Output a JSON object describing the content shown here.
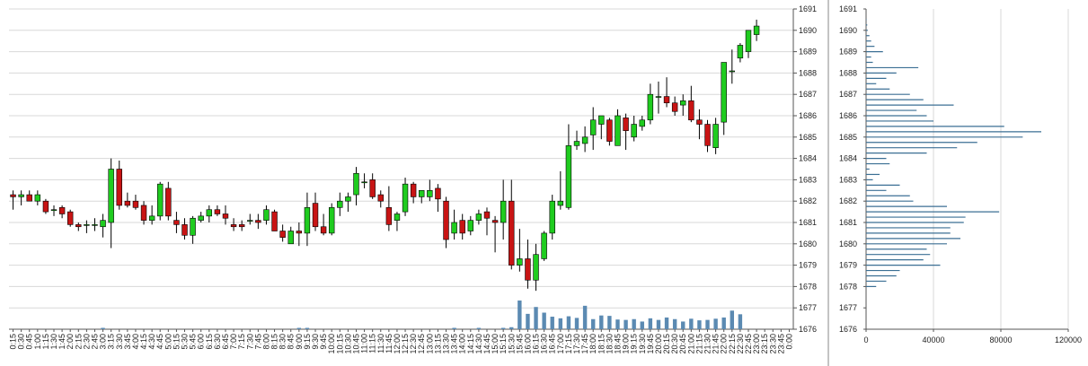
{
  "chart_data": [
    {
      "type": "candlestick",
      "title": "",
      "xlabel": "",
      "ylabel": "",
      "ylim": [
        1676,
        1691
      ],
      "y_ticks": [
        "1691",
        "1690",
        "1689",
        "1688",
        "1687",
        "1686",
        "1685",
        "1684",
        "1683",
        "1682",
        "1681",
        "1680",
        "1679",
        "1678",
        "1677",
        "1676"
      ],
      "x_ticks": [
        "0:15",
        "0:30",
        "0:45",
        "1:00",
        "1:15",
        "1:30",
        "1:45",
        "2:00",
        "2:15",
        "2:30",
        "2:45",
        "3:00",
        "3:15",
        "3:30",
        "3:45",
        "4:00",
        "4:15",
        "4:30",
        "4:45",
        "5:00",
        "5:15",
        "5:30",
        "5:45",
        "6:00",
        "6:15",
        "6:30",
        "6:45",
        "7:00",
        "7:15",
        "7:30",
        "7:45",
        "8:00",
        "8:15",
        "8:30",
        "8:45",
        "9:00",
        "9:15",
        "9:30",
        "9:45",
        "10:00",
        "10:15",
        "10:30",
        "10:45",
        "11:00",
        "11:15",
        "11:30",
        "11:45",
        "12:00",
        "12:15",
        "12:30",
        "12:45",
        "13:00",
        "13:15",
        "13:30",
        "13:45",
        "14:00",
        "14:15",
        "14:30",
        "14:45",
        "15:00",
        "15:15",
        "15:30",
        "15:45",
        "16:00",
        "16:15",
        "16:30",
        "16:45",
        "17:00",
        "17:15",
        "17:30",
        "17:45",
        "18:00",
        "18:15",
        "18:30",
        "18:45",
        "19:00",
        "19:15",
        "19:30",
        "19:45",
        "20:00",
        "20:15",
        "20:30",
        "20:45",
        "21:00",
        "21:15",
        "21:30",
        "21:45",
        "22:00",
        "22:15",
        "22:30",
        "22:45",
        "23:00",
        "23:15",
        "23:30",
        "23:45",
        "0:00"
      ],
      "candles": [
        [
          1682.3,
          1682.5,
          1681.6,
          1682.2
        ],
        [
          1682.2,
          1682.5,
          1681.8,
          1682.3
        ],
        [
          1682.3,
          1682.5,
          1682.0,
          1682.0
        ],
        [
          1682.0,
          1682.5,
          1681.8,
          1682.3
        ],
        [
          1682.0,
          1682.1,
          1681.4,
          1681.5
        ],
        [
          1681.6,
          1681.8,
          1681.3,
          1681.6
        ],
        [
          1681.7,
          1681.8,
          1681.2,
          1681.4
        ],
        [
          1681.5,
          1681.6,
          1680.8,
          1680.9
        ],
        [
          1680.9,
          1681.0,
          1680.6,
          1680.8
        ],
        [
          1680.9,
          1681.1,
          1680.5,
          1680.9
        ],
        [
          1680.9,
          1681.2,
          1680.6,
          1680.9
        ],
        [
          1680.8,
          1681.4,
          1680.3,
          1681.1
        ],
        [
          1681.0,
          1684.0,
          1679.8,
          1683.5
        ],
        [
          1683.5,
          1683.9,
          1681.6,
          1681.8
        ],
        [
          1682.0,
          1682.4,
          1681.7,
          1681.8
        ],
        [
          1682.0,
          1682.3,
          1681.6,
          1681.7
        ],
        [
          1681.8,
          1682.0,
          1680.9,
          1681.1
        ],
        [
          1681.1,
          1681.8,
          1680.9,
          1681.3
        ],
        [
          1681.3,
          1682.9,
          1681.1,
          1682.8
        ],
        [
          1682.6,
          1682.9,
          1681.1,
          1681.3
        ],
        [
          1681.1,
          1681.5,
          1680.5,
          1680.9
        ],
        [
          1680.9,
          1681.2,
          1680.2,
          1680.4
        ],
        [
          1680.4,
          1681.3,
          1680.0,
          1681.2
        ],
        [
          1681.1,
          1681.5,
          1681.0,
          1681.3
        ],
        [
          1681.3,
          1681.8,
          1681.0,
          1681.6
        ],
        [
          1681.6,
          1681.8,
          1681.3,
          1681.4
        ],
        [
          1681.4,
          1681.8,
          1680.9,
          1681.2
        ],
        [
          1680.9,
          1681.2,
          1680.6,
          1680.8
        ],
        [
          1680.9,
          1681.1,
          1680.6,
          1680.8
        ],
        [
          1681.1,
          1681.4,
          1680.9,
          1681.1
        ],
        [
          1681.1,
          1681.4,
          1680.7,
          1681.0
        ],
        [
          1681.1,
          1681.8,
          1680.9,
          1681.6
        ],
        [
          1681.5,
          1681.6,
          1680.6,
          1680.6
        ],
        [
          1680.6,
          1680.9,
          1680.1,
          1680.3
        ],
        [
          1680.0,
          1680.8,
          1680.0,
          1680.6
        ],
        [
          1680.6,
          1681.0,
          1679.9,
          1680.5
        ],
        [
          1680.5,
          1682.4,
          1679.9,
          1681.7
        ],
        [
          1681.9,
          1682.4,
          1680.6,
          1680.8
        ],
        [
          1680.8,
          1681.4,
          1680.4,
          1680.5
        ],
        [
          1680.5,
          1681.9,
          1680.4,
          1681.7
        ],
        [
          1681.7,
          1682.4,
          1681.3,
          1682.0
        ],
        [
          1682.0,
          1682.4,
          1681.5,
          1682.2
        ],
        [
          1682.3,
          1683.6,
          1681.8,
          1683.3
        ],
        [
          1682.9,
          1683.3,
          1682.6,
          1682.9
        ],
        [
          1683.0,
          1683.3,
          1682.1,
          1682.2
        ],
        [
          1682.3,
          1682.5,
          1681.7,
          1682.0
        ],
        [
          1681.7,
          1682.7,
          1680.6,
          1680.9
        ],
        [
          1681.1,
          1681.5,
          1680.6,
          1681.4
        ],
        [
          1681.5,
          1683.1,
          1681.3,
          1682.8
        ],
        [
          1682.8,
          1682.9,
          1681.9,
          1682.2
        ],
        [
          1682.2,
          1682.5,
          1681.9,
          1682.5
        ],
        [
          1682.2,
          1683.0,
          1682.0,
          1682.5
        ],
        [
          1682.6,
          1682.8,
          1681.5,
          1682.1
        ],
        [
          1682.0,
          1682.2,
          1679.8,
          1680.2
        ],
        [
          1680.5,
          1681.6,
          1680.2,
          1681.0
        ],
        [
          1681.1,
          1681.4,
          1680.2,
          1680.5
        ],
        [
          1680.6,
          1681.3,
          1680.4,
          1681.1
        ],
        [
          1681.1,
          1681.6,
          1680.9,
          1681.4
        ],
        [
          1681.5,
          1681.7,
          1680.4,
          1681.2
        ],
        [
          1681.1,
          1681.3,
          1679.6,
          1681.0
        ],
        [
          1681.0,
          1683.0,
          1680.2,
          1682.0
        ],
        [
          1682.0,
          1683.0,
          1678.8,
          1679.0
        ],
        [
          1679.0,
          1680.7,
          1678.7,
          1679.3
        ],
        [
          1679.3,
          1680.2,
          1677.9,
          1678.3
        ],
        [
          1678.3,
          1680.0,
          1677.8,
          1679.5
        ],
        [
          1679.3,
          1680.6,
          1679.2,
          1680.5
        ],
        [
          1680.5,
          1682.3,
          1680.2,
          1682.0
        ],
        [
          1681.8,
          1683.4,
          1681.6,
          1682.0
        ],
        [
          1681.7,
          1685.6,
          1681.6,
          1684.6
        ],
        [
          1684.6,
          1685.3,
          1684.4,
          1684.8
        ],
        [
          1684.7,
          1685.5,
          1684.3,
          1685.0
        ],
        [
          1685.1,
          1686.4,
          1684.4,
          1685.8
        ],
        [
          1685.6,
          1686.0,
          1684.9,
          1686.0
        ],
        [
          1685.8,
          1685.9,
          1684.6,
          1684.8
        ],
        [
          1684.6,
          1686.3,
          1684.6,
          1686.0
        ],
        [
          1685.9,
          1686.1,
          1684.4,
          1685.3
        ],
        [
          1685.0,
          1686.0,
          1684.8,
          1685.6
        ],
        [
          1685.5,
          1686.0,
          1685.3,
          1685.8
        ],
        [
          1685.8,
          1687.5,
          1685.6,
          1687.0
        ],
        [
          1686.9,
          1687.6,
          1686.1,
          1686.9
        ],
        [
          1686.9,
          1687.8,
          1686.4,
          1686.6
        ],
        [
          1686.6,
          1686.9,
          1686.0,
          1686.2
        ],
        [
          1686.5,
          1687.0,
          1686.0,
          1686.7
        ],
        [
          1686.7,
          1687.4,
          1685.7,
          1685.8
        ],
        [
          1685.8,
          1686.3,
          1684.9,
          1685.6
        ],
        [
          1685.6,
          1685.8,
          1684.3,
          1684.6
        ],
        [
          1684.5,
          1685.9,
          1684.2,
          1685.6
        ],
        [
          1685.7,
          1688.5,
          1685.1,
          1688.5
        ],
        [
          1688.1,
          1689.1,
          1687.5,
          1688.1
        ],
        [
          1688.7,
          1689.4,
          1688.5,
          1689.3
        ],
        [
          1689.0,
          1690.0,
          1688.7,
          1690.0
        ],
        [
          1689.8,
          1690.5,
          1689.5,
          1690.2
        ],
        null,
        null,
        null,
        null
      ],
      "volume_max": 7100,
      "volume": [
        0,
        0,
        0,
        0,
        0,
        0,
        0,
        0,
        0,
        0,
        0,
        180,
        0,
        0,
        0,
        0,
        0,
        0,
        0,
        0,
        0,
        0,
        0,
        0,
        0,
        0,
        0,
        0,
        0,
        0,
        0,
        0,
        0,
        0,
        0,
        90,
        140,
        0,
        0,
        0,
        0,
        0,
        0,
        0,
        0,
        0,
        0,
        0,
        0,
        0,
        0,
        0,
        0,
        0,
        90,
        0,
        0,
        60,
        0,
        0,
        90,
        500,
        7100,
        3800,
        5500,
        4100,
        3100,
        2700,
        3200,
        2800,
        5800,
        2500,
        3400,
        3300,
        2400,
        2300,
        2500,
        1900,
        2700,
        2300,
        2900,
        2500,
        1900,
        2600,
        2200,
        2300,
        2600,
        2900,
        4600,
        3700,
        0,
        0,
        0,
        0,
        0,
        0
      ],
      "up_color": "#1fcc1f",
      "down_color": "#c81414",
      "volume_color": "#5b8ab2",
      "grid": true
    },
    {
      "type": "horizontal-bar",
      "title": "",
      "xlabel": "",
      "ylabel": "",
      "xlim": [
        0,
        120000
      ],
      "ylim": [
        1676,
        1691
      ],
      "x_ticks": [
        "0",
        "40000",
        "80000",
        "120000"
      ],
      "y_ticks": [
        "1691",
        "1690",
        "1689",
        "1688",
        "1687",
        "1686",
        "1685",
        "1684",
        "1683",
        "1682",
        "1681",
        "1680",
        "1679",
        "1678",
        "1677",
        "1676"
      ],
      "bar_color": "#3b6f94",
      "grid": true,
      "price_levels": [
        1690.5,
        1690.25,
        1690.0,
        1689.75,
        1689.5,
        1689.25,
        1689.0,
        1688.75,
        1688.5,
        1688.25,
        1688.0,
        1687.75,
        1687.5,
        1687.25,
        1687.0,
        1686.75,
        1686.5,
        1686.25,
        1686.0,
        1685.75,
        1685.5,
        1685.25,
        1685.0,
        1684.75,
        1684.5,
        1684.25,
        1684.0,
        1683.75,
        1683.5,
        1683.25,
        1683.0,
        1682.75,
        1682.5,
        1682.25,
        1682.0,
        1681.75,
        1681.5,
        1681.25,
        1681.0,
        1680.75,
        1680.5,
        1680.25,
        1680.0,
        1679.75,
        1679.5,
        1679.25,
        1679.0,
        1678.75,
        1678.5,
        1678.25,
        1678.0
      ],
      "volumes": [
        300,
        700,
        1000,
        2000,
        3000,
        5000,
        10000,
        3000,
        4000,
        31000,
        18000,
        12000,
        6000,
        14000,
        26000,
        34000,
        52000,
        30000,
        36000,
        40000,
        82000,
        104000,
        93000,
        66000,
        54000,
        36000,
        12000,
        14000,
        2000,
        8000,
        4000,
        20000,
        12000,
        26000,
        28000,
        48000,
        79000,
        59000,
        58000,
        50000,
        50000,
        56000,
        48000,
        36000,
        38000,
        34000,
        44000,
        20000,
        18000,
        12000,
        6000
      ]
    }
  ]
}
